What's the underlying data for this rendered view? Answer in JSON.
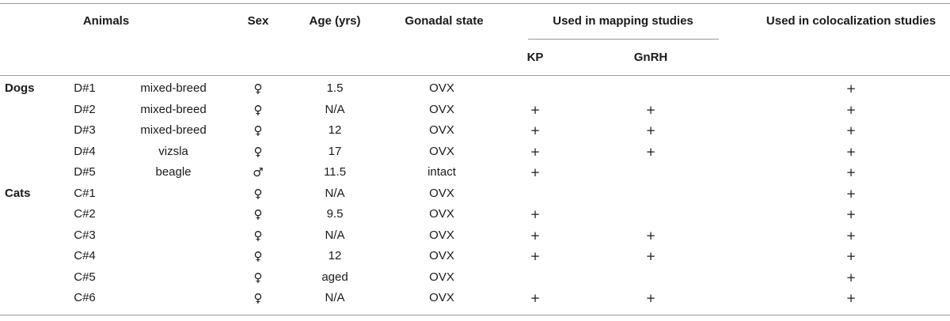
{
  "header": {
    "animals": "Animals",
    "sex": "Sex",
    "age": "Age (yrs)",
    "gonadal": "Gonadal state",
    "mapping": "Used in mapping studies",
    "coloc": "Used in colocalization studies",
    "kp": "KP",
    "gnrh": "GnRH"
  },
  "groups": {
    "dogs": "Dogs",
    "cats": "Cats"
  },
  "rows": [
    {
      "group": "Dogs",
      "id": "D#1",
      "breed": "mixed-breed",
      "sex": "♀",
      "age": "1.5",
      "state": "OVX",
      "kp": "",
      "gnrh": "",
      "coloc": "+"
    },
    {
      "group": "",
      "id": "D#2",
      "breed": "mixed-breed",
      "sex": "♀",
      "age": "N/A",
      "state": "OVX",
      "kp": "+",
      "gnrh": "+",
      "coloc": "+"
    },
    {
      "group": "",
      "id": "D#3",
      "breed": "mixed-breed",
      "sex": "♀",
      "age": "12",
      "state": "OVX",
      "kp": "+",
      "gnrh": "+",
      "coloc": "+"
    },
    {
      "group": "",
      "id": "D#4",
      "breed": "vizsla",
      "sex": "♀",
      "age": "17",
      "state": "OVX",
      "kp": "+",
      "gnrh": "+",
      "coloc": "+"
    },
    {
      "group": "",
      "id": "D#5",
      "breed": "beagle",
      "sex": "♂",
      "age": "11.5",
      "state": "intact",
      "kp": "+",
      "gnrh": "",
      "coloc": "+"
    },
    {
      "group": "Cats",
      "id": "C#1",
      "breed": "",
      "sex": "♀",
      "age": "N/A",
      "state": "OVX",
      "kp": "",
      "gnrh": "",
      "coloc": "+"
    },
    {
      "group": "",
      "id": "C#2",
      "breed": "",
      "sex": "♀",
      "age": "9.5",
      "state": "OVX",
      "kp": "+",
      "gnrh": "",
      "coloc": "+"
    },
    {
      "group": "",
      "id": "C#3",
      "breed": "",
      "sex": "♀",
      "age": "N/A",
      "state": "OVX",
      "kp": "+",
      "gnrh": "+",
      "coloc": "+"
    },
    {
      "group": "",
      "id": "C#4",
      "breed": "",
      "sex": "♀",
      "age": "12",
      "state": "OVX",
      "kp": "+",
      "gnrh": "+",
      "coloc": "+"
    },
    {
      "group": "",
      "id": "C#5",
      "breed": "",
      "sex": "♀",
      "age": "aged",
      "state": "OVX",
      "kp": "",
      "gnrh": "",
      "coloc": "+"
    },
    {
      "group": "",
      "id": "C#6",
      "breed": "",
      "sex": "♀",
      "age": "N/A",
      "state": "OVX",
      "kp": "+",
      "gnrh": "+",
      "coloc": "+"
    }
  ]
}
